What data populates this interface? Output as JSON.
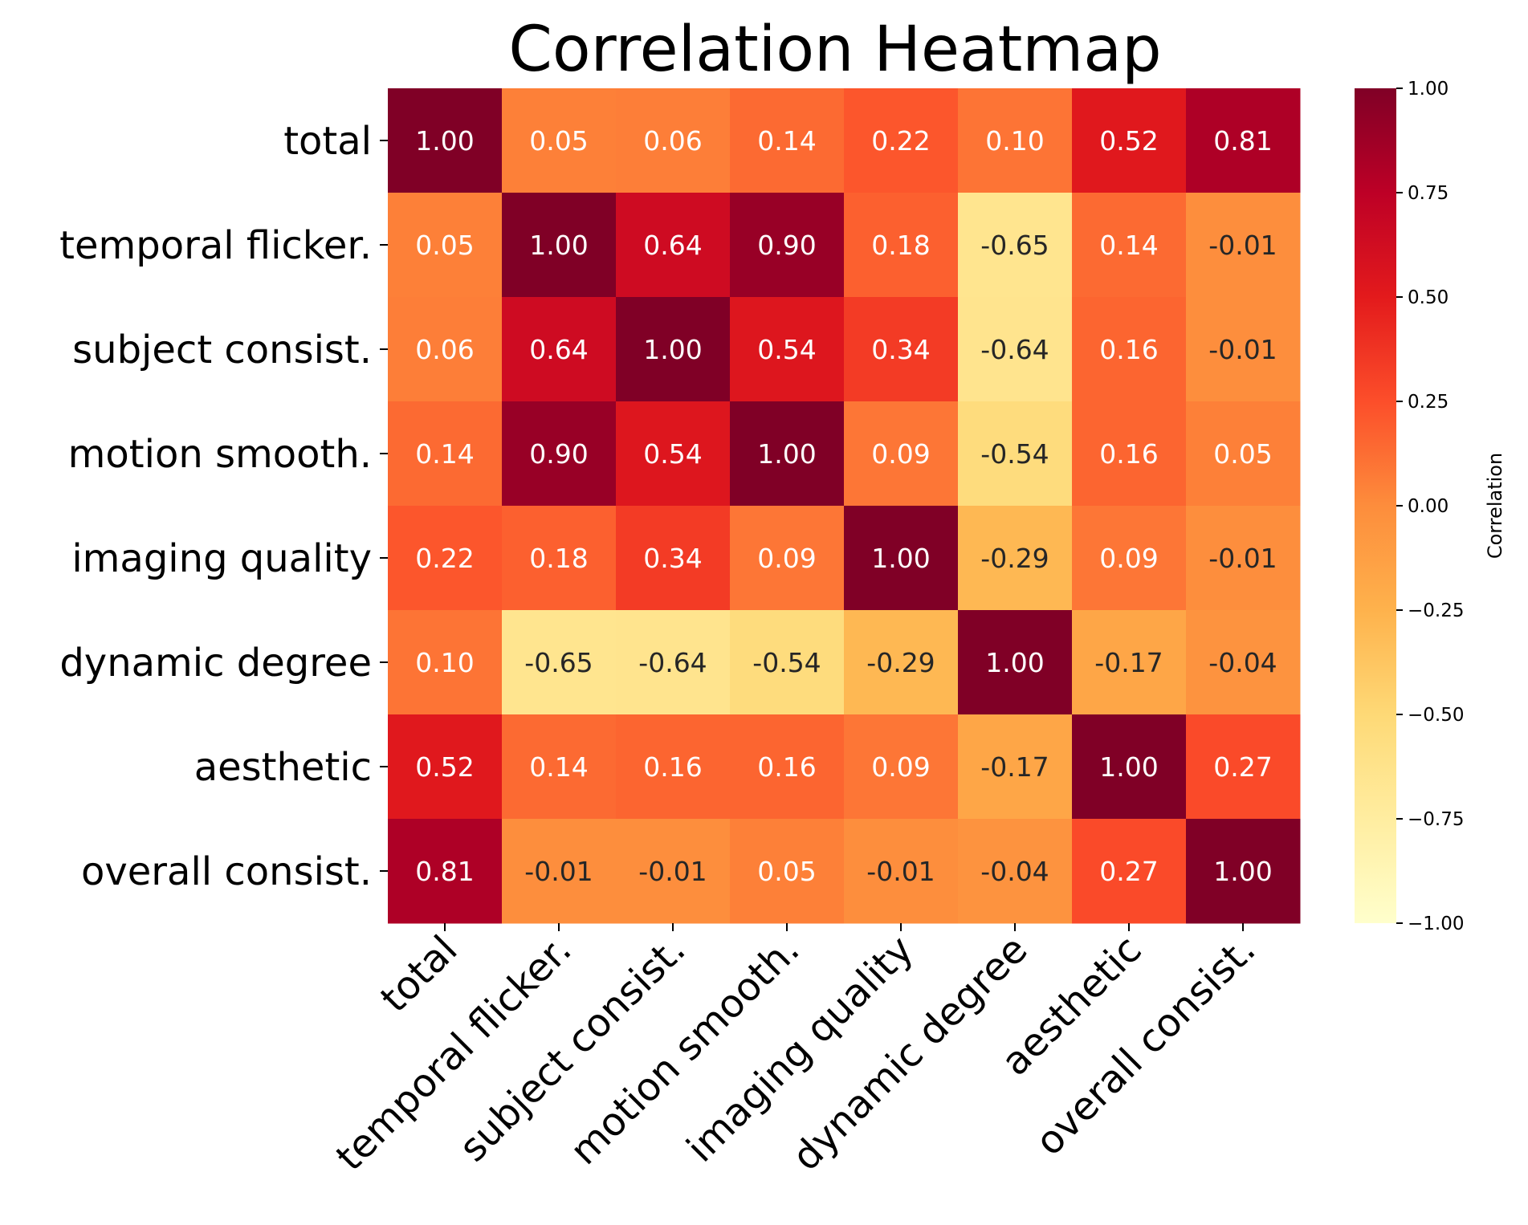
{
  "chart_data": {
    "type": "heatmap",
    "title": "Correlation Heatmap",
    "row_labels": [
      "total",
      "temporal flicker.",
      "subject consist.",
      "motion smooth.",
      "imaging quality",
      "dynamic degree",
      "aesthetic",
      "overall consist."
    ],
    "col_labels": [
      "total",
      "temporal flicker.",
      "subject consist.",
      "motion smooth.",
      "imaging quality",
      "dynamic degree",
      "aesthetic",
      "overall consist."
    ],
    "values": [
      [
        1.0,
        0.05,
        0.06,
        0.14,
        0.22,
        0.1,
        0.52,
        0.81
      ],
      [
        0.05,
        1.0,
        0.64,
        0.9,
        0.18,
        -0.65,
        0.14,
        -0.01
      ],
      [
        0.06,
        0.64,
        1.0,
        0.54,
        0.34,
        -0.64,
        0.16,
        -0.01
      ],
      [
        0.14,
        0.9,
        0.54,
        1.0,
        0.09,
        -0.54,
        0.16,
        0.05
      ],
      [
        0.22,
        0.18,
        0.34,
        0.09,
        1.0,
        -0.29,
        0.09,
        -0.01
      ],
      [
        0.1,
        -0.65,
        -0.64,
        -0.54,
        -0.29,
        1.0,
        -0.17,
        -0.04
      ],
      [
        0.52,
        0.14,
        0.16,
        0.16,
        0.09,
        -0.17,
        1.0,
        0.27
      ],
      [
        0.81,
        -0.01,
        -0.01,
        0.05,
        -0.01,
        -0.04,
        0.27,
        1.0
      ]
    ],
    "value_format": "2-decimals",
    "colormap": "YlOrRd",
    "vmin": -1.0,
    "vmax": 1.0,
    "colorbar": {
      "label": "Correlation",
      "ticks": [
        1.0,
        0.75,
        0.5,
        0.25,
        0.0,
        -0.25,
        -0.5,
        -0.75,
        -1.0
      ],
      "tick_labels": [
        "1.00",
        "0.75",
        "0.50",
        "0.25",
        "0.00",
        "−0.25",
        "−0.50",
        "−0.75",
        "−1.00"
      ]
    },
    "colors": {
      "text_dark_cell": "#ffffff",
      "text_light_cell": "#262626",
      "axis": "#000000"
    }
  }
}
